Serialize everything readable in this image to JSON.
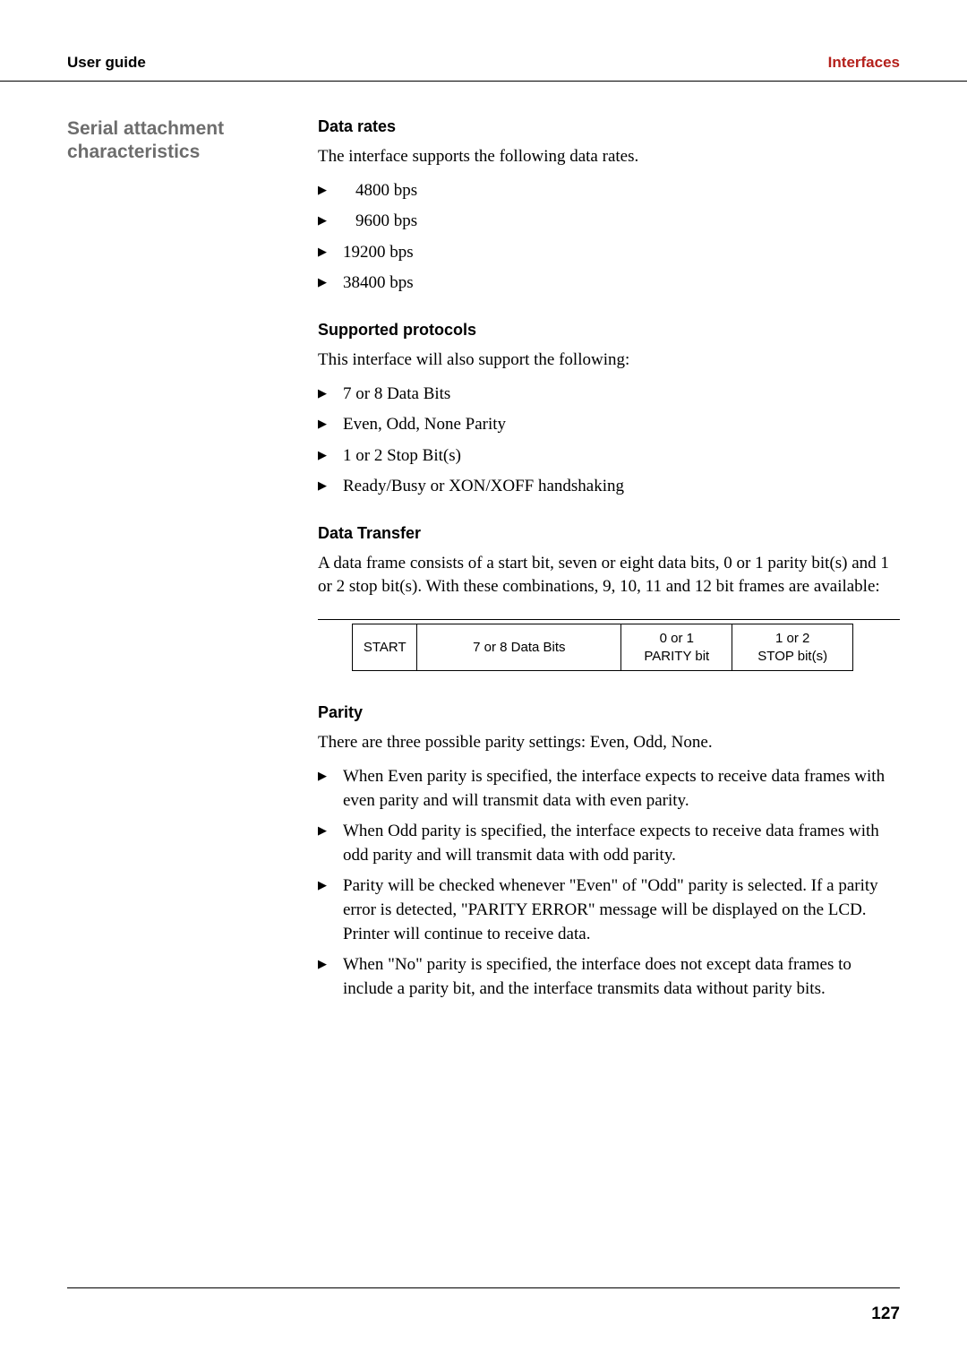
{
  "header": {
    "left": "User guide",
    "right": "Interfaces"
  },
  "sidebar": {
    "title_line1": "Serial attachment",
    "title_line2": "characteristics"
  },
  "sections": {
    "data_rates": {
      "heading": "Data rates",
      "intro": "The interface supports the following data rates.",
      "items": [
        "  4800 bps",
        "  9600 bps",
        "19200 bps",
        "38400 bps"
      ]
    },
    "supported_protocols": {
      "heading": "Supported protocols",
      "intro": "This interface will also support the following:",
      "items": [
        "7 or 8 Data Bits",
        "Even, Odd, None Parity",
        "1 or 2 Stop Bit(s)",
        "Ready/Busy or XON/XOFF handshaking"
      ]
    },
    "data_transfer": {
      "heading": "Data Transfer",
      "intro": "A data frame consists of a start bit, seven or eight data bits, 0 or 1 parity bit(s) and 1 or 2 stop bit(s). With these combinations, 9, 10, 11 and 12 bit frames are available:"
    },
    "diagram": {
      "start": "START",
      "data_bits": "7 or 8 Data Bits",
      "parity_line1": "0 or 1",
      "parity_line2": "PARITY bit",
      "stop_line1": "1 or 2",
      "stop_line2": "STOP bit(s)"
    },
    "parity": {
      "heading": "Parity",
      "intro": "There are three possible parity settings: Even, Odd, None.",
      "items": [
        "When Even parity is specified, the interface expects to receive data frames with even parity and will transmit data with even parity.",
        "When Odd parity is specified, the interface expects to receive data frames with odd parity and will transmit data with odd parity.",
        "Parity will be checked whenever \"Even\" of \"Odd\" parity is selected. If a parity error is detected, \"PARITY ERROR\" message will be displayed on the LCD. Printer will continue to receive data.",
        "When \"No\" parity is specified, the interface does not except data frames to include a parity bit, and the interface transmits data without parity bits."
      ]
    }
  },
  "footer": {
    "page_number": "127"
  }
}
